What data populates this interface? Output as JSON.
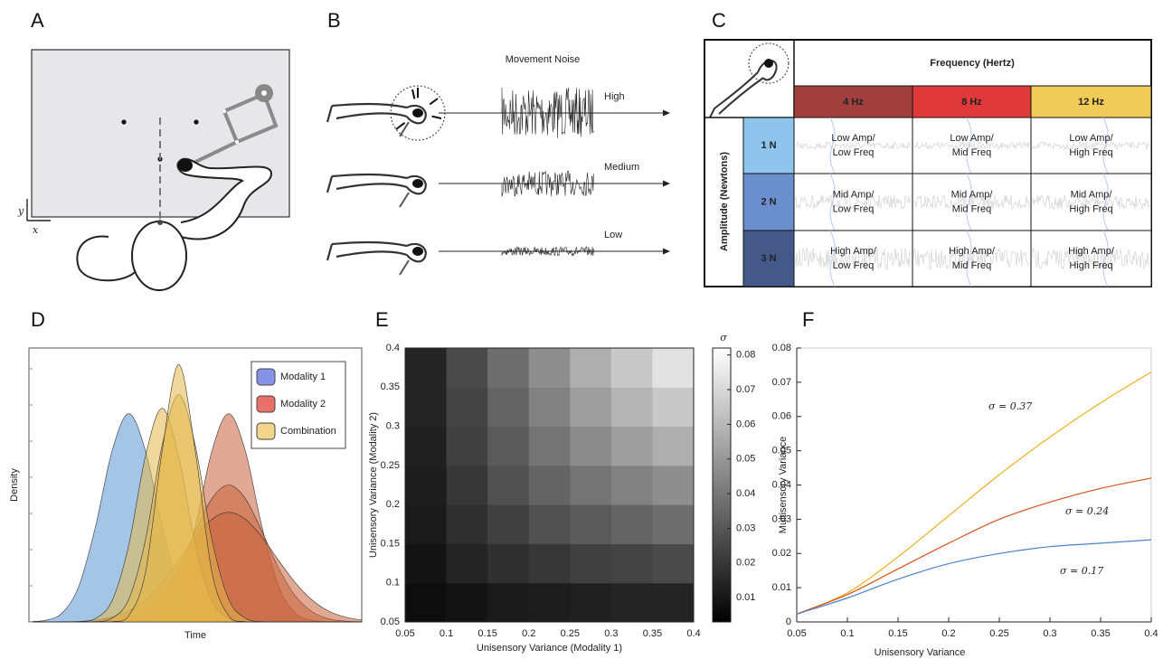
{
  "panels": {
    "A": {
      "label": "A",
      "axis_labels": {
        "y": "y",
        "x": "x"
      }
    },
    "B": {
      "label": "B",
      "title": "Movement Noise",
      "levels": [
        "High",
        "Medium",
        "Low"
      ]
    },
    "C": {
      "label": "C",
      "column_header": "Frequency (Hertz)",
      "columns": [
        {
          "text": "4 Hz",
          "color": "#a23f3f"
        },
        {
          "text": "8 Hz",
          "color": "#e0393b"
        },
        {
          "text": "12 Hz",
          "color": "#f1cb57"
        }
      ],
      "row_header": "Amplitude (Newtons)",
      "rows": [
        {
          "text": "1 N",
          "color": "#8fc4ec"
        },
        {
          "text": "2 N",
          "color": "#6b8ecd"
        },
        {
          "text": "3 N",
          "color": "#44598a"
        }
      ],
      "cells": [
        [
          [
            "Low Amp/",
            "Low Freq"
          ],
          [
            "Low Amp/",
            "Mid Freq"
          ],
          [
            "Low Amp/",
            "High Freq"
          ]
        ],
        [
          [
            "Mid Amp/",
            "Low Freq"
          ],
          [
            "Mid Amp/",
            "Mid Freq"
          ],
          [
            "Mid Amp/",
            "High Freq"
          ]
        ],
        [
          [
            "High Amp/",
            "Low Freq"
          ],
          [
            "High Amp/",
            "Mid Freq"
          ],
          [
            "High Amp/",
            "High Freq"
          ]
        ]
      ]
    }
  },
  "chart_data": [
    {
      "label": "D",
      "type": "area",
      "xlabel": "Time",
      "ylabel": "Density",
      "x": [
        0,
        0.5,
        1,
        1.5,
        2,
        2.5,
        3,
        3.5,
        4,
        4.5,
        5,
        5.5,
        6,
        6.5,
        7,
        7.5,
        8,
        8.5,
        9,
        9.5,
        10
      ],
      "xlim": [
        0,
        10
      ],
      "ylim": [
        0,
        1
      ],
      "legend": "upper right",
      "series": [
        {
          "name": "Modality 1",
          "color": "#8592e6",
          "fill": "#5b95d3",
          "curves": [
            [
              0.001,
              0.006,
              0.033,
              0.131,
              0.348,
              0.625,
              0.76,
              0.625,
              0.348,
              0.131,
              0.033,
              0.006,
              0.001,
              0,
              0,
              0,
              0,
              0,
              0,
              0,
              0
            ]
          ]
        },
        {
          "name": "Modality 2",
          "color": "#e8706b",
          "fill": "#c8623a",
          "curves": [
            [
              0,
              0,
              0,
              0,
              0,
              0,
              0.001,
              0.006,
              0.033,
              0.131,
              0.348,
              0.625,
              0.76,
              0.625,
              0.348,
              0.131,
              0.033,
              0.006,
              0.001,
              0,
              0
            ],
            [
              0,
              0,
              0,
              0,
              0.001,
              0.003,
              0.012,
              0.038,
              0.096,
              0.197,
              0.331,
              0.451,
              0.5,
              0.451,
              0.331,
              0.197,
              0.096,
              0.038,
              0.012,
              0.003,
              0.001
            ],
            [
              0,
              0,
              0.001,
              0.002,
              0.007,
              0.018,
              0.04,
              0.081,
              0.144,
              0.225,
              0.31,
              0.375,
              0.4,
              0.375,
              0.31,
              0.225,
              0.144,
              0.081,
              0.04,
              0.018,
              0.007
            ]
          ]
        },
        {
          "name": "Combination",
          "color": "#f3d68b",
          "fill": "#e3b84a",
          "curves": [
            [
              0,
              0,
              0,
              0.001,
              0.013,
              0.078,
              0.281,
              0.605,
              0.78,
              0.605,
              0.281,
              0.078,
              0.013,
              0.001,
              0,
              0,
              0,
              0,
              0,
              0,
              0
            ],
            [
              0,
              0,
              0,
              0,
              0.001,
              0.014,
              0.083,
              0.299,
              0.643,
              0.83,
              0.643,
              0.299,
              0.083,
              0.014,
              0.001,
              0,
              0,
              0,
              0,
              0,
              0
            ],
            [
              0,
              0,
              0,
              0,
              0,
              0.001,
              0.023,
              0.18,
              0.622,
              0.94,
              0.622,
              0.18,
              0.023,
              0.001,
              0,
              0,
              0,
              0,
              0,
              0,
              0
            ]
          ]
        }
      ]
    },
    {
      "label": "E",
      "type": "heatmap",
      "xlabel": "Unisensory Variance (Modality 1)",
      "ylabel": "Unisensory Variance (Modality 2)",
      "x": [
        0.075,
        0.125,
        0.175,
        0.225,
        0.275,
        0.325,
        0.375
      ],
      "y": [
        0.075,
        0.125,
        0.175,
        0.225,
        0.275,
        0.325,
        0.375
      ],
      "z": [
        [
          0.007,
          0.009,
          0.011,
          0.012,
          0.013,
          0.014,
          0.014
        ],
        [
          0.009,
          0.014,
          0.018,
          0.02,
          0.023,
          0.024,
          0.026
        ],
        [
          0.011,
          0.018,
          0.023,
          0.028,
          0.031,
          0.034,
          0.037
        ],
        [
          0.012,
          0.02,
          0.028,
          0.034,
          0.039,
          0.043,
          0.047
        ],
        [
          0.013,
          0.023,
          0.031,
          0.039,
          0.046,
          0.052,
          0.057
        ],
        [
          0.014,
          0.024,
          0.034,
          0.043,
          0.052,
          0.059,
          0.065
        ],
        [
          0.014,
          0.026,
          0.037,
          0.047,
          0.057,
          0.065,
          0.073
        ]
      ],
      "xlim": [
        0.05,
        0.4
      ],
      "ylim": [
        0.05,
        0.4
      ],
      "xticks": [
        0.05,
        0.1,
        0.15,
        0.2,
        0.25,
        0.3,
        0.35,
        0.4
      ],
      "yticks": [
        0.05,
        0.1,
        0.15,
        0.2,
        0.25,
        0.3,
        0.35,
        0.4
      ],
      "colorbar": {
        "title": "σ",
        "lim": [
          0.003,
          0.082
        ],
        "ticks": [
          0.01,
          0.02,
          0.03,
          0.04,
          0.05,
          0.06,
          0.07,
          0.08
        ],
        "colors": [
          "#000000",
          "#ffffff"
        ]
      }
    },
    {
      "label": "F",
      "type": "line",
      "xlabel": "Unisensory Variance",
      "ylabel": "Multisensory Variance",
      "x": [
        0.05,
        0.1,
        0.15,
        0.2,
        0.25,
        0.3,
        0.35,
        0.4
      ],
      "xlim": [
        0.05,
        0.4
      ],
      "ylim": [
        0,
        0.08
      ],
      "xticks": [
        0.05,
        0.1,
        0.15,
        0.2,
        0.25,
        0.3,
        0.35,
        0.4
      ],
      "yticks": [
        0,
        0.01,
        0.02,
        0.03,
        0.04,
        0.05,
        0.06,
        0.07,
        0.08
      ],
      "series": [
        {
          "name": "σ = 0.37",
          "color": "#edb120",
          "values": [
            0.0023,
            0.0085,
            0.019,
            0.031,
            0.043,
            0.054,
            0.064,
            0.073
          ]
        },
        {
          "name": "σ = 0.24",
          "color": "#d95319",
          "values": [
            0.0023,
            0.008,
            0.0155,
            0.023,
            0.03,
            0.035,
            0.039,
            0.042
          ]
        },
        {
          "name": "σ = 0.17",
          "color": "#4d80d0",
          "values": [
            0.0023,
            0.007,
            0.0125,
            0.017,
            0.02,
            0.022,
            0.023,
            0.024
          ]
        }
      ]
    }
  ]
}
